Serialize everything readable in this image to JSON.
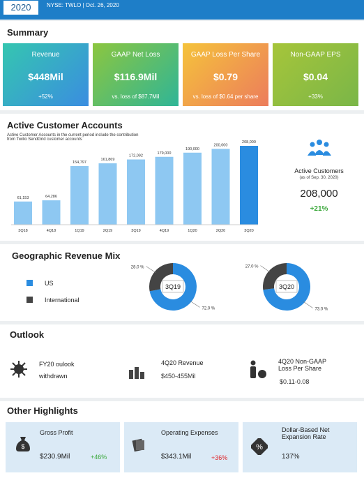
{
  "header": {
    "year": "2020",
    "ticker": "NYSE: TWLO",
    "date": "Oct. 26, 2020"
  },
  "summary": {
    "title": "Summary",
    "cards": [
      {
        "label": "Revenue",
        "value": "$448Mil",
        "note": "+52%"
      },
      {
        "label": "GAAP Net Loss",
        "value": "$116.9Mil",
        "note": "vs. loss of $87.7Mil"
      },
      {
        "label": "GAAP Loss Per Share",
        "value": "$0.79",
        "note": "vs. loss of $0.64 per share"
      },
      {
        "label": "Non-GAAP EPS",
        "value": "$0.04",
        "note": "+33%"
      }
    ]
  },
  "customers": {
    "title": "Active Customer Accounts",
    "subtitle": "Active Customer Accounts in the current period include the contribution from Twilio SendGrid customer accounts",
    "chart": {
      "type": "bar",
      "categories": [
        "3Q18",
        "4Q18",
        "1Q19",
        "2Q19",
        "3Q19",
        "4Q19",
        "1Q20",
        "2Q20",
        "3Q20"
      ],
      "values": [
        61153,
        64286,
        154797,
        161869,
        172092,
        179000,
        190000,
        200000,
        208000
      ],
      "value_labels": [
        "61,153",
        "64,286",
        "154,797",
        "161,869",
        "172,092",
        "179,000",
        "190,000",
        "200,000",
        "208,000"
      ],
      "color": "#8ec8f2",
      "highlight_color": "#2a8ce0"
    },
    "side": {
      "label": "Active Customers",
      "note": "(as of Sep. 30, 2020)",
      "value": "208,000",
      "change": "+21%"
    }
  },
  "geo": {
    "title": "Geographic Revenue Mix",
    "chart": {
      "type": "pie",
      "legend": [
        "US",
        "International"
      ],
      "colors": [
        "#2a8ce0",
        "#444444"
      ],
      "donuts": [
        {
          "name": "3Q19",
          "values": [
            72,
            28
          ],
          "value_labels": [
            "72.0 %",
            "28.0 %"
          ]
        },
        {
          "name": "3Q20",
          "values": [
            73,
            27
          ],
          "value_labels": [
            "73.0 %",
            "27.0 %"
          ]
        }
      ]
    }
  },
  "outlook": {
    "title": "Outlook",
    "items": [
      {
        "label": "FY20 oulook",
        "value": "withdrawn"
      },
      {
        "label": "4Q20 Revenue",
        "value": "$450-455Mil"
      },
      {
        "label": "4Q20 Non-GAAP Loss Per Share",
        "value": "$0.11-0.08"
      }
    ]
  },
  "highlights": {
    "title": "Other Highlights",
    "items": [
      {
        "label": "Gross Profit",
        "value": "$230.9Mil",
        "change": "+46%"
      },
      {
        "label": "Operating Expenses",
        "value": "$343.1Mil",
        "change": "+36%"
      },
      {
        "label": "Dollar-Based Net Expansion Rate",
        "value": "137%"
      }
    ]
  }
}
